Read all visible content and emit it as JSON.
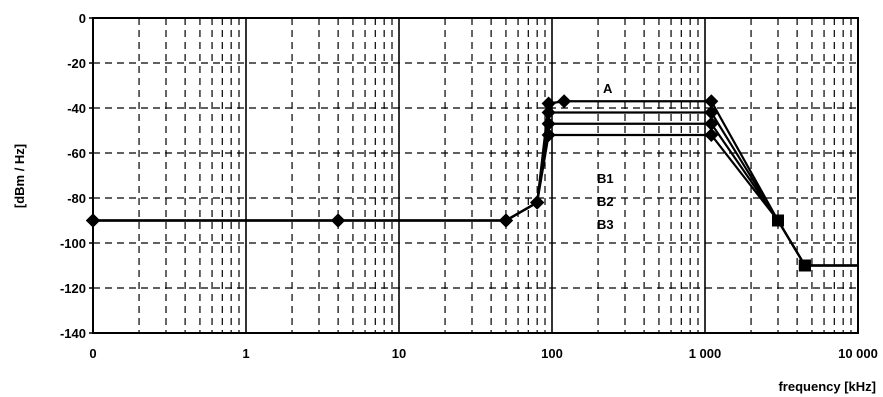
{
  "chart_data": {
    "type": "line",
    "title": "",
    "xlabel": "frequency [kHz]",
    "ylabel": "[dBm / Hz]",
    "x_scale": "log",
    "x_ticks": [
      {
        "value": 0.1,
        "label": "0"
      },
      {
        "value": 1,
        "label": "1"
      },
      {
        "value": 10,
        "label": "10"
      },
      {
        "value": 100,
        "label": "100"
      },
      {
        "value": 1000,
        "label": "1 000"
      },
      {
        "value": 10000,
        "label": "10 000"
      }
    ],
    "y_ticks": [
      "0",
      "-20",
      "-40",
      "-60",
      "-80",
      "-100",
      "-120",
      "-140"
    ],
    "xlim": [
      0.1,
      10000
    ],
    "ylim": [
      -140,
      0
    ],
    "grid": true,
    "series": [
      {
        "name": "A",
        "x": [
          0.1,
          4,
          50,
          80,
          95,
          120,
          1100,
          3000,
          4500,
          10000
        ],
        "y": [
          -90,
          -90,
          -90,
          -82,
          -38,
          -37,
          -37,
          -90,
          -110,
          -110
        ]
      },
      {
        "name": "B1",
        "x": [
          0.1,
          4,
          50,
          80,
          95,
          1100,
          3000,
          4500,
          10000
        ],
        "y": [
          -90,
          -90,
          -90,
          -82,
          -42,
          -42,
          -90,
          -110,
          -110
        ]
      },
      {
        "name": "B2",
        "x": [
          0.1,
          4,
          50,
          80,
          95,
          1100,
          3000,
          4500,
          10000
        ],
        "y": [
          -90,
          -90,
          -90,
          -82,
          -47,
          -47,
          -90,
          -110,
          -110
        ]
      },
      {
        "name": "B3",
        "x": [
          0.1,
          4,
          50,
          80,
          95,
          1100,
          3000,
          4500,
          10000
        ],
        "y": [
          -90,
          -90,
          -90,
          -82,
          -52,
          -52,
          -90,
          -110,
          -110
        ]
      }
    ]
  }
}
